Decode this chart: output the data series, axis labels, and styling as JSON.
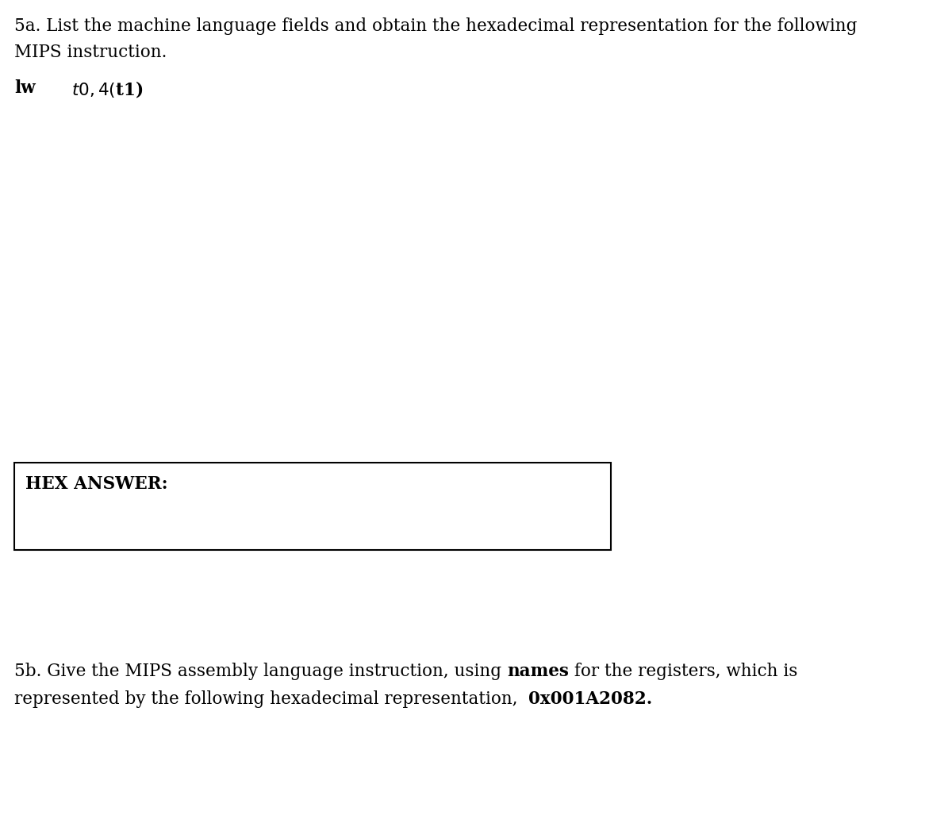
{
  "background_color": "#ffffff",
  "text_color": "#000000",
  "line1_5a": "5a. List the machine language fields and obtain the hexadecimal representation for the following",
  "line2_5a": "MIPS instruction.",
  "instruction_label": "lw",
  "instruction_body": "$t0, 4 ($t1)",
  "hex_label": "HEX ANSWER:",
  "line1_5b_part1": "5b. Give the MIPS assembly language instruction, using ",
  "line1_5b_bold": "names",
  "line1_5b_part2": " for the registers, which is",
  "line2_5b_part1": "represented by the following hexadecimal representation,  ",
  "line2_5b_bold": "0x001A2082.",
  "font_size": 15.5,
  "font_family": "DejaVu Serif"
}
